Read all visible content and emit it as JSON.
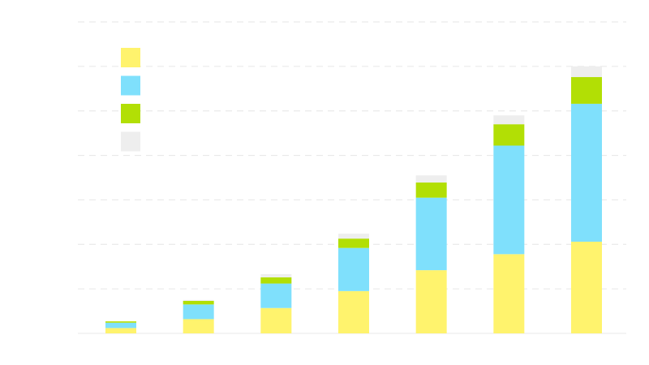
{
  "chart_data": {
    "type": "bar",
    "stacked": true,
    "title": "",
    "xlabel": "",
    "ylabel": "",
    "categories": [
      "",
      "",
      "",
      "",
      "",
      "",
      ""
    ],
    "ylim": [
      0,
      7
    ],
    "grid": true,
    "legend_position": "top-left",
    "series": [
      {
        "color": "#fff36d",
        "values": [
          0.12,
          0.32,
          0.57,
          0.95,
          1.42,
          1.78,
          2.06
        ]
      },
      {
        "color": "#7fe0fc",
        "values": [
          0.12,
          0.33,
          0.55,
          0.97,
          1.63,
          2.44,
          3.1
        ]
      },
      {
        "color": "#b2df05",
        "values": [
          0.03,
          0.08,
          0.14,
          0.21,
          0.34,
          0.48,
          0.6
        ]
      },
      {
        "color": "#eeeeee",
        "values": [
          0.0,
          0.02,
          0.07,
          0.11,
          0.16,
          0.2,
          0.24
        ]
      }
    ]
  }
}
